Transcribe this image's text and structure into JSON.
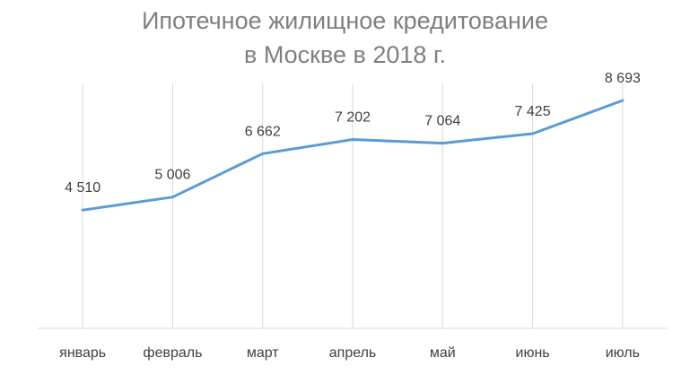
{
  "chart_data": {
    "type": "line",
    "title_line1": "Ипотечное жилищное кредитование",
    "title_line2": "в Москве в 2018 г.",
    "categories": [
      "январь",
      "февраль",
      "март",
      "апрель",
      "май",
      "июнь",
      "июль"
    ],
    "series": [
      {
        "values": [
          4510,
          5006,
          6662,
          7202,
          7064,
          7425,
          8693
        ],
        "labels": [
          "4 510",
          "5 006",
          "6 662",
          "7 202",
          "7 064",
          "7 425",
          "8 693"
        ],
        "color": "#5b9bd5"
      }
    ],
    "ylim": [
      0,
      9000
    ],
    "grid": "vertical",
    "axis_color": "#d9d9d9"
  }
}
